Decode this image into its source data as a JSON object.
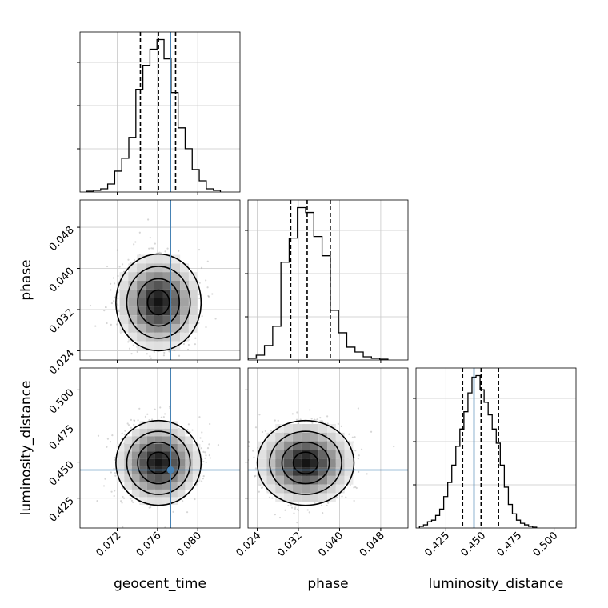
{
  "chart_data": {
    "type": "corner",
    "parameters": [
      "geocent_time",
      "phase",
      "luminosity_distance"
    ],
    "truths": {
      "geocent_time": 0.0773,
      "phase": null,
      "luminosity_distance": 0.4445
    },
    "quantiles": {
      "geocent_time": [
        0.0743,
        0.0761,
        0.0778
      ],
      "phase": [
        0.0305,
        0.0337,
        0.0382
      ],
      "luminosity_distance": [
        0.4366,
        0.4494,
        0.4615
      ]
    },
    "axes": {
      "geocent_time": {
        "range": [
          0.0683,
          0.0842
        ],
        "ticks": [
          "0.072",
          "0.076",
          "0.080"
        ],
        "tick_values": [
          0.072,
          0.076,
          0.08
        ]
      },
      "phase": {
        "range": [
          0.0222,
          0.0533
        ],
        "ticks": [
          "0.024",
          "0.032",
          "0.040",
          "0.048"
        ],
        "tick_values": [
          0.024,
          0.032,
          0.04,
          0.048
        ]
      },
      "luminosity_distance": {
        "range": [
          0.4043,
          0.5152
        ],
        "ticks": [
          "0.425",
          "0.450",
          "0.475",
          "0.500"
        ],
        "tick_values": [
          0.425,
          0.45,
          0.475,
          0.5
        ]
      }
    },
    "histograms": {
      "geocent_time": {
        "x": [
          0.0693,
          0.07,
          0.0707,
          0.0714,
          0.0721,
          0.0728,
          0.0735,
          0.0742,
          0.0749,
          0.0756,
          0.0763,
          0.077,
          0.0777,
          0.0784,
          0.0791,
          0.0798,
          0.0805,
          0.0812,
          0.0819
        ],
        "values": [
          0.5,
          1,
          2,
          5,
          13,
          21,
          34,
          64,
          79,
          89,
          95,
          83,
          62,
          40,
          27,
          14,
          7,
          2,
          1
        ]
      },
      "phase": {
        "x": [
          0.023,
          0.0246,
          0.0262,
          0.0278,
          0.0294,
          0.031,
          0.0326,
          0.0342,
          0.0358,
          0.0374,
          0.039,
          0.0406,
          0.0422,
          0.0438,
          0.0454,
          0.047,
          0.0486
        ],
        "values": [
          1,
          3,
          9,
          21,
          61,
          76,
          95,
          92,
          77,
          65,
          31,
          17,
          8,
          5,
          2,
          1,
          0.5
        ]
      },
      "luminosity_distance": {
        "x": [
          0.4081,
          0.4109,
          0.4137,
          0.4165,
          0.4193,
          0.4221,
          0.4249,
          0.4277,
          0.4305,
          0.4333,
          0.4361,
          0.4389,
          0.4417,
          0.4445,
          0.4473,
          0.4501,
          0.4529,
          0.4557,
          0.4585,
          0.4613,
          0.4641,
          0.4669,
          0.4697,
          0.4725,
          0.4753,
          0.4781,
          0.4809,
          0.4837,
          0.4865
        ],
        "values": [
          1,
          2,
          4,
          5,
          8,
          12,
          20,
          29,
          40,
          52,
          63,
          74,
          86,
          96,
          97,
          88,
          80,
          72,
          63,
          54,
          40,
          26,
          15,
          9,
          5,
          3,
          2,
          1,
          0.5
        ]
      }
    },
    "posterior_centers": {
      "geocent_time": 0.0761,
      "phase": 0.0334,
      "luminosity_distance": 0.4494
    },
    "posterior_widths": {
      "geocent_time": 0.0018,
      "phase": 0.004,
      "luminosity_distance": 0.0125
    },
    "contour_levels": 3,
    "colors": {
      "truth": "#4682b4",
      "frame": "#000000",
      "grid": "#c8c8c8",
      "points": "#8a8a8a",
      "density_dark": "#000000",
      "density_light": "#ffffff"
    }
  }
}
